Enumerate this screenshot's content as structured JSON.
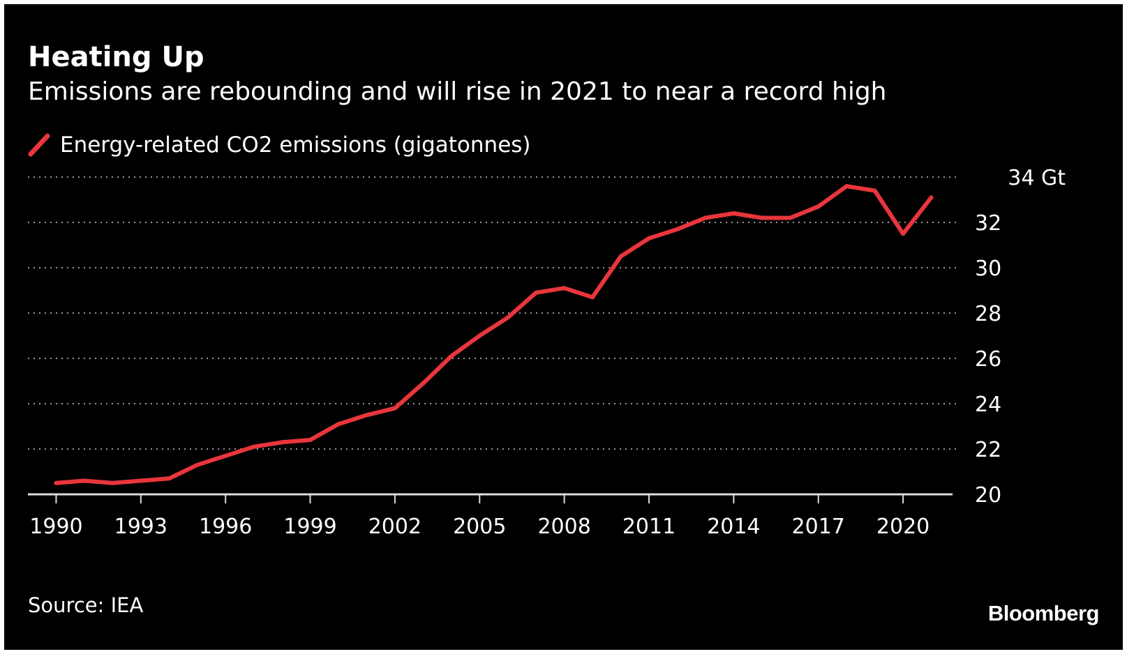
{
  "colors": {
    "background": "#000000",
    "text": "#ffffff",
    "series": "#e8363c",
    "grid": "#9a9a9a"
  },
  "chart_data": {
    "type": "line",
    "title": "Heating Up",
    "subtitle": "Emissions are rebounding and will rise in 2021 to near a record high",
    "source": "Source: IEA",
    "brand": "Bloomberg",
    "ylim": [
      20,
      34
    ],
    "yticks": [
      20,
      22,
      24,
      26,
      28,
      30,
      32,
      34
    ],
    "ytick_labels": [
      "20",
      "22",
      "24",
      "26",
      "28",
      "30",
      "32",
      "34 Gt"
    ],
    "xlim": [
      1989,
      2022
    ],
    "xticks": [
      1990,
      1993,
      1996,
      1999,
      2002,
      2005,
      2008,
      2011,
      2014,
      2017,
      2020
    ],
    "xtick_labels": [
      "1990",
      "1993",
      "1996",
      "1999",
      "2002",
      "2005",
      "2008",
      "2011",
      "2014",
      "2017",
      "2020"
    ],
    "grid": true,
    "legend_position": "top-left",
    "series": [
      {
        "name": "Energy-related CO2 emissions (gigatonnes)",
        "x": [
          1990,
          1991,
          1992,
          1993,
          1994,
          1995,
          1996,
          1997,
          1998,
          1999,
          2000,
          2001,
          2002,
          2003,
          2004,
          2005,
          2006,
          2007,
          2008,
          2009,
          2010,
          2011,
          2012,
          2013,
          2014,
          2015,
          2016,
          2017,
          2018,
          2019,
          2020,
          2021
        ],
        "y": [
          20.5,
          20.6,
          20.5,
          20.6,
          20.7,
          21.3,
          21.7,
          22.1,
          22.3,
          22.4,
          23.1,
          23.5,
          23.8,
          24.9,
          26.1,
          27.0,
          27.8,
          28.9,
          29.1,
          28.7,
          30.5,
          31.3,
          31.7,
          32.2,
          32.4,
          32.2,
          32.2,
          32.7,
          33.6,
          33.4,
          31.5,
          33.1
        ]
      }
    ]
  }
}
